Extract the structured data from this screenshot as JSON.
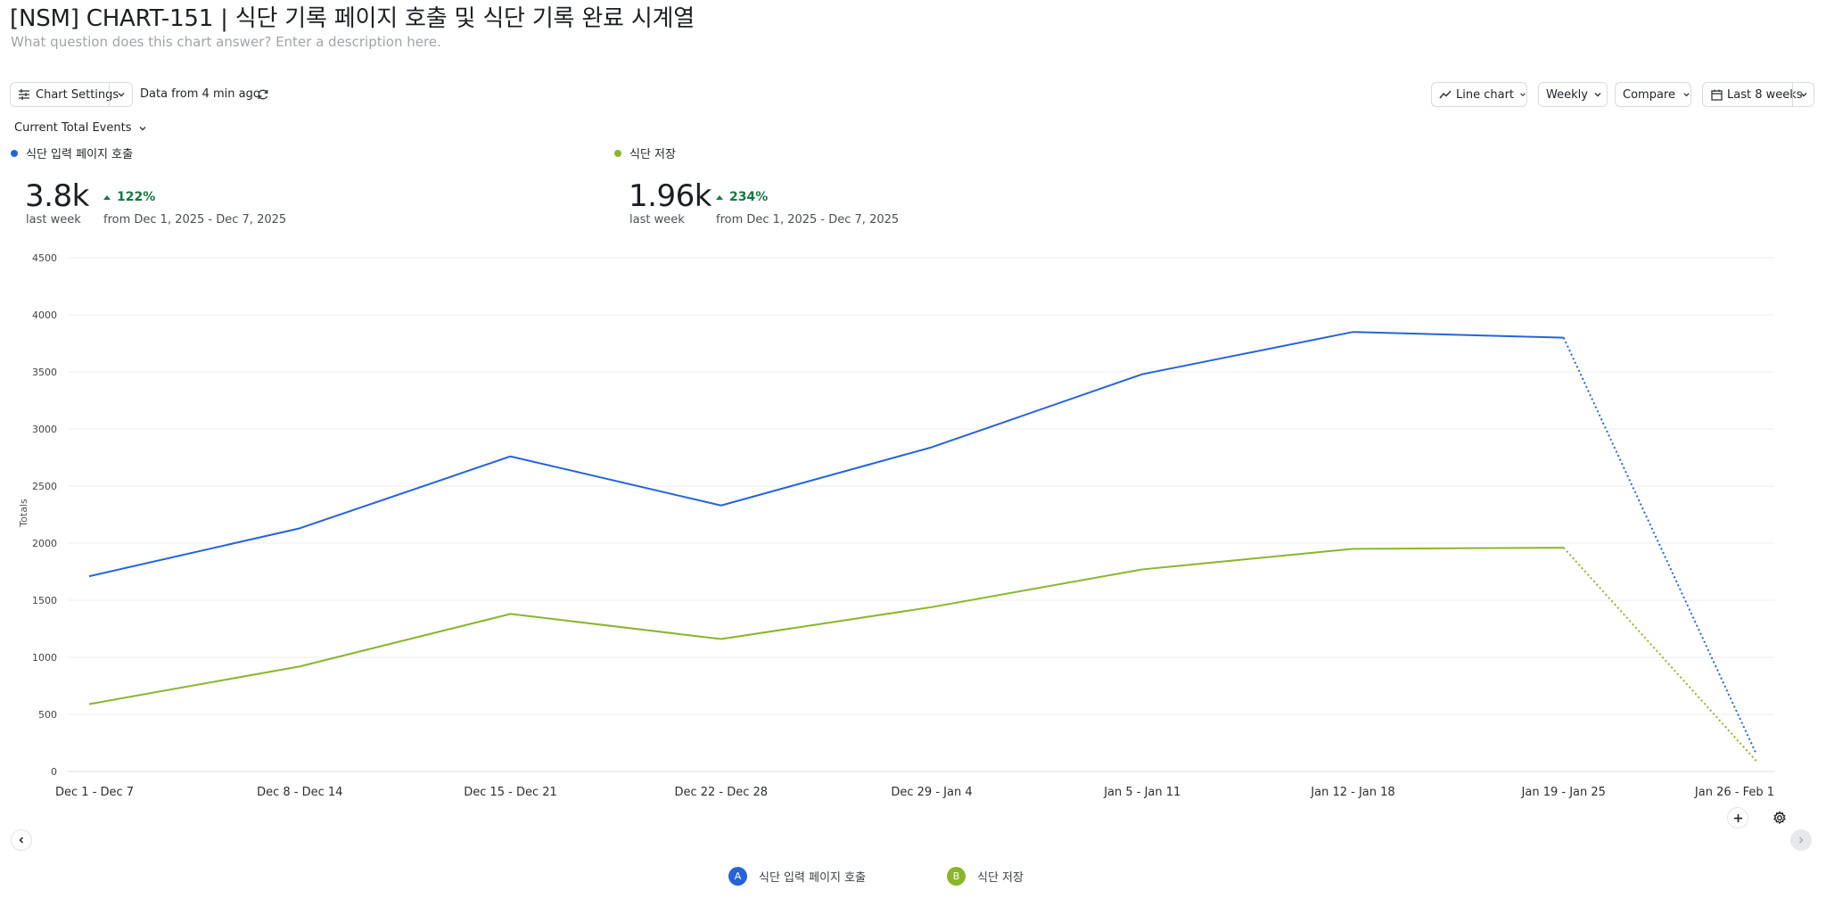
{
  "header": {
    "title": "[NSM] CHART-151 | 식단 기록 페이지 호출 및 식단 기록 완료 시계열",
    "description_placeholder": "What question does this chart answer? Enter a description here."
  },
  "toolbar": {
    "chart_settings_label": "Chart Settings",
    "data_freshness": "Data from 4 min ago",
    "chart_type_label": "Line chart",
    "interval_label": "Weekly",
    "compare_label": "Compare",
    "date_range_label": "Last 8 weeks"
  },
  "metric_selector": {
    "label": "Current Total Events"
  },
  "metrics": [
    {
      "name": "식단 입력 페이지 호출",
      "value": "3.8k",
      "period": "last week",
      "delta": "122%",
      "delta_from": "from Dec 1, 2025 - Dec 7, 2025",
      "color": "#2563d9"
    },
    {
      "name": "식단 저장",
      "value": "1.96k",
      "period": "last week",
      "delta": "234%",
      "delta_from": "from Dec 1, 2025 - Dec 7, 2025",
      "color": "#8ab52c"
    }
  ],
  "legend": [
    {
      "badge": "A",
      "name": "식단 입력 페이지 호출",
      "color": "#2563d9"
    },
    {
      "badge": "B",
      "name": "식단 저장",
      "color": "#8ab52c"
    }
  ],
  "icons": {
    "settings": "sliders-icon",
    "refresh": "refresh-icon",
    "line_chart": "line-chart-icon",
    "calendar": "calendar-icon",
    "add": "plus-icon",
    "gear": "gear-icon",
    "prev": "chevron-left-icon",
    "next": "chevron-right-icon"
  },
  "chart_data": {
    "type": "line",
    "ylabel": "Totals",
    "xlabel": "",
    "ylim": [
      0,
      4500
    ],
    "yticks": [
      0,
      500,
      1000,
      1500,
      2000,
      2500,
      3000,
      3500,
      4000,
      4500
    ],
    "categories": [
      "Dec 1 - Dec 7",
      "Dec 8 - Dec 14",
      "Dec 15 - Dec 21",
      "Dec 22 - Dec 28",
      "Dec 29 - Jan 4",
      "Jan 5 - Jan 11",
      "Jan 12 - Jan 18",
      "Jan 19 - Jan 25",
      "Jan 26 - Feb 1"
    ],
    "incomplete_last_period": true,
    "grid": true,
    "series": [
      {
        "name": "식단 입력 페이지 호출",
        "color": "#2563d9",
        "values": [
          1710,
          2130,
          2760,
          2330,
          2840,
          3480,
          3850,
          3800,
          150
        ]
      },
      {
        "name": "식단 저장",
        "color": "#8ab52c",
        "values": [
          590,
          920,
          1380,
          1160,
          1440,
          1770,
          1950,
          1960,
          90
        ]
      }
    ]
  }
}
